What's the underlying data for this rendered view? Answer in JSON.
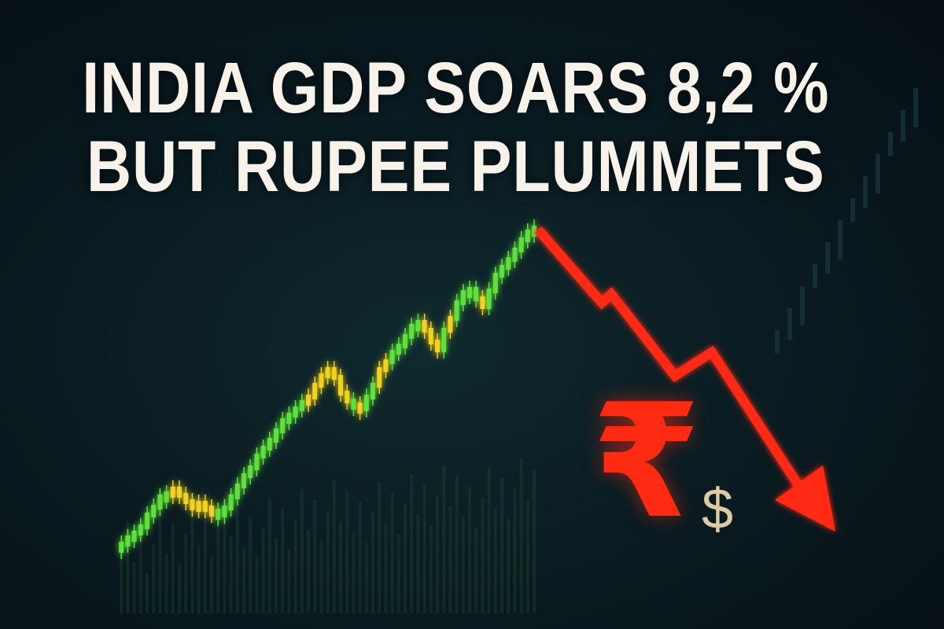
{
  "headline": {
    "line1": "INDIA GDP SOARS 8,2 %",
    "line2": "BUT RUPEE PLUMMETS"
  },
  "symbols": {
    "rupee": "₹",
    "dollar": "$"
  },
  "colors": {
    "background": "#0a1c22",
    "headline": "#f7f3ea",
    "candle_up": "#5fe03a",
    "candle_alt": "#f2d21c",
    "decline_arrow": "#ff2a12",
    "dollar": "#dccca4"
  }
}
